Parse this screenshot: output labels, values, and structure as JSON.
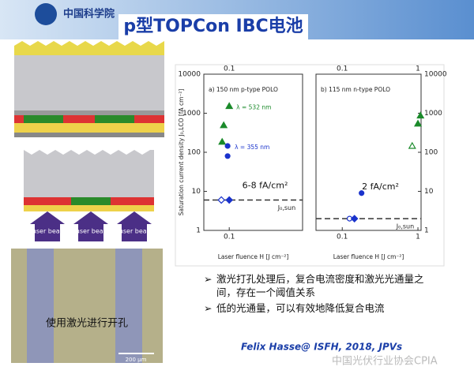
{
  "header": {
    "logo": "中国科学院",
    "title": "p型TOPCon IBC电池"
  },
  "diagram": {
    "laser_labels": [
      "Laser beam",
      "Laser beam",
      "Laser beam"
    ],
    "photo_caption": "使用激光进行开孔",
    "scale_bar": "200 µm"
  },
  "chart_data": [
    {
      "type": "scatter",
      "panel_label": "a) 150 nm p-type POLO",
      "y_label": "Saturation current density J₀,LCO [fA cm⁻²]",
      "x_label": "Laser fluence H [J cm⁻²]",
      "log_x": true,
      "log_y": true,
      "xlim": [
        0.045,
        1
      ],
      "ylim": [
        1,
        10000
      ],
      "xticks": [
        0.1
      ],
      "yticks": [
        1,
        10,
        100,
        1000,
        10000
      ],
      "y_axis_side": "left",
      "series": [
        {
          "name": "λ = 532 nm",
          "color": "#1a8a2a",
          "marker": "triangle",
          "filled": true,
          "x": [
            0.1,
            0.084,
            0.08
          ],
          "values": [
            1520,
            490,
            185
          ]
        },
        {
          "name": "λ = 355 nm",
          "color": "#1a33cc",
          "marker": "circle",
          "filled": true,
          "x": [
            0.095,
            0.095
          ],
          "values": [
            145,
            80
          ]
        },
        {
          "color": "#1a33cc",
          "marker": "diamond",
          "filled": false,
          "x": [
            0.078
          ],
          "values": [
            6
          ]
        },
        {
          "color": "#1a33cc",
          "marker": "diamond",
          "filled": true,
          "x": [
            0.1
          ],
          "values": [
            6
          ]
        }
      ],
      "reference": {
        "value": 6,
        "label": "J₀,sun"
      },
      "annotation": "6-8 fA/cm²"
    },
    {
      "type": "scatter",
      "panel_label": "b) 115 nm n-type POLO",
      "x_label": "Laser fluence H [J cm⁻²]",
      "log_x": true,
      "log_y": true,
      "xlim": [
        0.045,
        1.1
      ],
      "ylim": [
        1,
        10000
      ],
      "xticks": [
        0.1,
        1
      ],
      "yticks": [
        1,
        10,
        100,
        1000,
        10000
      ],
      "y_axis_side": "right",
      "series": [
        {
          "color": "#1a8a2a",
          "marker": "triangle",
          "filled": true,
          "x": [
            1.08,
            1.0
          ],
          "values": [
            870,
            540
          ]
        },
        {
          "color": "#1a8a2a",
          "marker": "triangle",
          "filled": false,
          "x": [
            0.84
          ],
          "values": [
            145
          ]
        },
        {
          "color": "#1a33cc",
          "marker": "circle",
          "filled": true,
          "x": [
            0.18
          ],
          "values": [
            9
          ]
        },
        {
          "color": "#1a33cc",
          "marker": "circle",
          "filled": false,
          "x": [
            0.125
          ],
          "values": [
            2
          ]
        },
        {
          "color": "#1a33cc",
          "marker": "diamond",
          "filled": true,
          "x": [
            0.145
          ],
          "values": [
            2
          ]
        }
      ],
      "reference": {
        "value": 2,
        "label": "J₀,sun"
      },
      "annotation": "2 fA/cm²"
    }
  ],
  "bullets": [
    "激光打孔处理后，复合电流密度和激光光通量之间，存在一个阈值关系",
    "低的光通量，可以有效地降低复合电流"
  ],
  "citation": "Felix Hasse@ ISFH, 2018, JPVs",
  "watermark": "中国光伏行业协会CPIA"
}
